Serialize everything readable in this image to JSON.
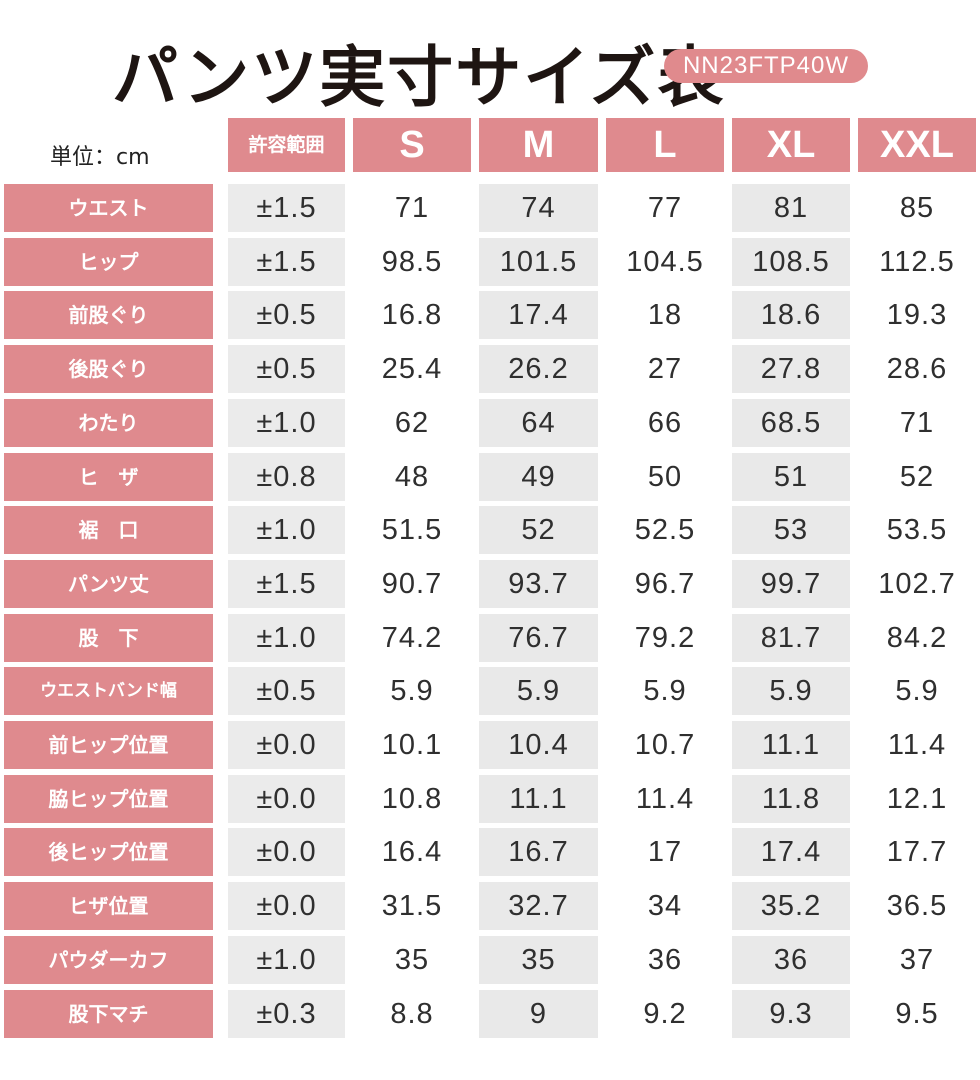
{
  "title": "パンツ実寸サイズ表",
  "product_code": "NN23FTP40W",
  "unit_label": "単位：cm",
  "header": {
    "tolerance": "許容範囲",
    "sizes": [
      "S",
      "M",
      "L",
      "XL",
      "XXL"
    ]
  },
  "rows": [
    {
      "label": "ウエスト",
      "tolerance": "±1.5",
      "values": [
        "71",
        "74",
        "77",
        "81",
        "85"
      ]
    },
    {
      "label": "ヒップ",
      "tolerance": "±1.5",
      "values": [
        "98.5",
        "101.5",
        "104.5",
        "108.5",
        "112.5"
      ]
    },
    {
      "label": "前股ぐり",
      "tolerance": "±0.5",
      "values": [
        "16.8",
        "17.4",
        "18",
        "18.6",
        "19.3"
      ]
    },
    {
      "label": "後股ぐり",
      "tolerance": "±0.5",
      "values": [
        "25.4",
        "26.2",
        "27",
        "27.8",
        "28.6"
      ]
    },
    {
      "label": "わたり",
      "tolerance": "±1.0",
      "values": [
        "62",
        "64",
        "66",
        "68.5",
        "71"
      ]
    },
    {
      "label": "ヒ　ザ",
      "tolerance": "±0.8",
      "values": [
        "48",
        "49",
        "50",
        "51",
        "52"
      ]
    },
    {
      "label": "裾　口",
      "tolerance": "±1.0",
      "values": [
        "51.5",
        "52",
        "52.5",
        "53",
        "53.5"
      ]
    },
    {
      "label": "パンツ丈",
      "tolerance": "±1.5",
      "values": [
        "90.7",
        "93.7",
        "96.7",
        "99.7",
        "102.7"
      ]
    },
    {
      "label": "股　下",
      "tolerance": "±1.0",
      "values": [
        "74.2",
        "76.7",
        "79.2",
        "81.7",
        "84.2"
      ]
    },
    {
      "label": "ウエストバンド幅",
      "tolerance": "±0.5",
      "values": [
        "5.9",
        "5.9",
        "5.9",
        "5.9",
        "5.9"
      ]
    },
    {
      "label": "前ヒップ位置",
      "tolerance": "±0.0",
      "values": [
        "10.1",
        "10.4",
        "10.7",
        "11.1",
        "11.4"
      ]
    },
    {
      "label": "脇ヒップ位置",
      "tolerance": "±0.0",
      "values": [
        "10.8",
        "11.1",
        "11.4",
        "11.8",
        "12.1"
      ]
    },
    {
      "label": "後ヒップ位置",
      "tolerance": "±0.0",
      "values": [
        "16.4",
        "16.7",
        "17",
        "17.4",
        "17.7"
      ]
    },
    {
      "label": "ヒザ位置",
      "tolerance": "±0.0",
      "values": [
        "31.5",
        "32.7",
        "34",
        "35.2",
        "36.5"
      ]
    },
    {
      "label": "パウダーカフ",
      "tolerance": "±1.0",
      "values": [
        "35",
        "35",
        "36",
        "36",
        "37"
      ]
    },
    {
      "label": "股下マチ",
      "tolerance": "±0.3",
      "values": [
        "8.8",
        "9",
        "9.2",
        "9.3",
        "9.5"
      ]
    }
  ],
  "colors": {
    "header_pink": "#df8a8e",
    "badge_pink": "#e08a8d",
    "zebra_gray": "#e9e9e9",
    "title_text": "#1e1512"
  }
}
